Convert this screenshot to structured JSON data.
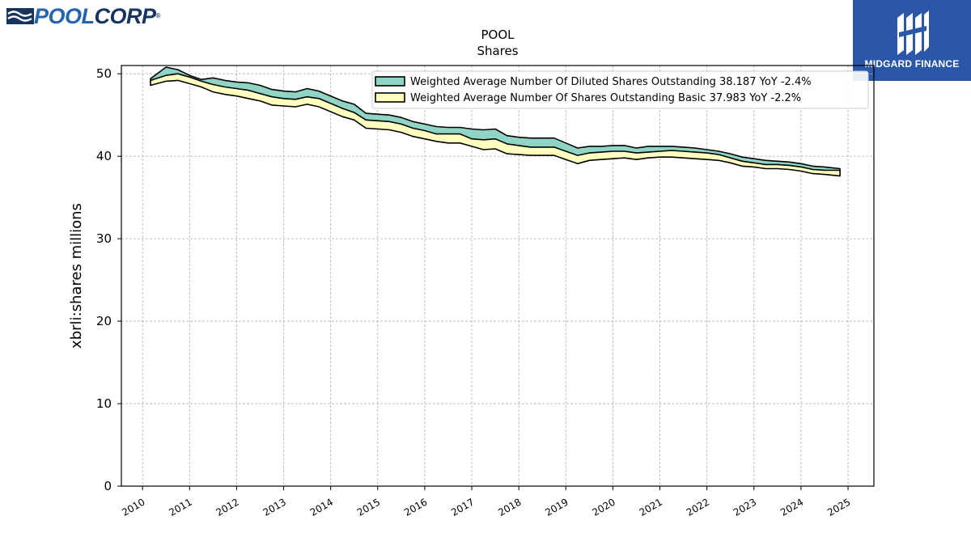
{
  "brand": {
    "logo_text_part1": "POOL",
    "logo_text_part2": "CORP",
    "logo_reg": "®",
    "logo_colors": {
      "pool": "#2565ae",
      "corp": "#17345f"
    },
    "badge_text": "MIDGARD FINANCE",
    "badge_color": "#2a57a8"
  },
  "chart_data": {
    "type": "area",
    "title": "POOL",
    "subtitle": "Shares",
    "xlabel": "",
    "ylabel": "xbrli:shares millions",
    "xlim": [
      2009.55,
      2025.55
    ],
    "ylim": [
      0,
      51
    ],
    "xticks": [
      "2010",
      "2011",
      "2012",
      "2013",
      "2014",
      "2015",
      "2016",
      "2017",
      "2018",
      "2019",
      "2020",
      "2021",
      "2022",
      "2023",
      "2024",
      "2025"
    ],
    "yticks": [
      "0",
      "10",
      "20",
      "30",
      "40",
      "50"
    ],
    "grid": true,
    "legend_position": "top-right",
    "series": [
      {
        "name": "Weighted Average Number Of Diluted Shares Outstanding  38.187 YoY -2.4%",
        "fill": "#8fd4c4",
        "x": [
          2010.17,
          2010.5,
          2010.75,
          2011.0,
          2011.25,
          2011.5,
          2011.75,
          2012.0,
          2012.25,
          2012.5,
          2012.75,
          2013.0,
          2013.25,
          2013.5,
          2013.75,
          2014.0,
          2014.25,
          2014.5,
          2014.75,
          2015.0,
          2015.25,
          2015.5,
          2015.75,
          2016.0,
          2016.25,
          2016.5,
          2016.75,
          2017.0,
          2017.25,
          2017.5,
          2017.75,
          2018.0,
          2018.25,
          2018.5,
          2018.75,
          2019.0,
          2019.25,
          2019.5,
          2019.75,
          2020.0,
          2020.25,
          2020.5,
          2020.75,
          2021.0,
          2021.25,
          2021.5,
          2021.75,
          2022.0,
          2022.25,
          2022.5,
          2022.75,
          2023.0,
          2023.25,
          2023.5,
          2023.75,
          2024.0,
          2024.25,
          2024.5,
          2024.83
        ],
        "upper": [
          49.4,
          50.8,
          50.5,
          49.8,
          49.3,
          49.5,
          49.2,
          49.0,
          48.9,
          48.6,
          48.1,
          47.9,
          47.8,
          48.2,
          47.9,
          47.3,
          46.7,
          46.3,
          45.2,
          45.1,
          45.0,
          44.7,
          44.2,
          43.9,
          43.6,
          43.5,
          43.5,
          43.3,
          43.2,
          43.3,
          42.5,
          42.3,
          42.2,
          42.2,
          42.2,
          41.6,
          41.0,
          41.2,
          41.2,
          41.3,
          41.3,
          41.0,
          41.2,
          41.2,
          41.2,
          41.1,
          41.0,
          40.8,
          40.6,
          40.3,
          39.9,
          39.7,
          39.5,
          39.4,
          39.3,
          39.1,
          38.8,
          38.7,
          38.5
        ],
        "lower": [
          49.1,
          49.7,
          49.9,
          49.5,
          49.0,
          48.6,
          48.3,
          48.1,
          47.9,
          47.5,
          47.1,
          46.9,
          46.8,
          47.1,
          46.9,
          46.3,
          45.7,
          45.2,
          44.3,
          44.2,
          44.1,
          43.8,
          43.3,
          43.0,
          42.6,
          42.6,
          42.6,
          42.0,
          41.9,
          42.0,
          41.4,
          41.2,
          41.0,
          41.0,
          41.0,
          40.5,
          40.0,
          40.3,
          40.4,
          40.5,
          40.5,
          40.3,
          40.4,
          40.5,
          40.6,
          40.5,
          40.4,
          40.3,
          40.1,
          39.7,
          39.3,
          39.1,
          38.9,
          38.9,
          38.8,
          38.6,
          38.3,
          38.2,
          38.187
        ]
      },
      {
        "name": "Weighted Average Number Of Shares Outstanding Basic  37.983 YoY -2.2%",
        "fill": "#ffffc0",
        "x": [
          2010.17,
          2010.5,
          2010.75,
          2011.0,
          2011.25,
          2011.5,
          2011.75,
          2012.0,
          2012.25,
          2012.5,
          2012.75,
          2013.0,
          2013.25,
          2013.5,
          2013.75,
          2014.0,
          2014.25,
          2014.5,
          2014.75,
          2015.0,
          2015.25,
          2015.5,
          2015.75,
          2016.0,
          2016.25,
          2016.5,
          2016.75,
          2017.0,
          2017.25,
          2017.5,
          2017.75,
          2018.0,
          2018.25,
          2018.5,
          2018.75,
          2019.0,
          2019.25,
          2019.5,
          2019.75,
          2020.0,
          2020.25,
          2020.5,
          2020.75,
          2021.0,
          2021.25,
          2021.5,
          2021.75,
          2022.0,
          2022.25,
          2022.5,
          2022.75,
          2023.0,
          2023.25,
          2023.5,
          2023.75,
          2024.0,
          2024.25,
          2024.5,
          2024.83
        ],
        "upper": [
          49.2,
          49.8,
          50.0,
          49.6,
          49.1,
          48.7,
          48.4,
          48.2,
          48.0,
          47.6,
          47.2,
          47.0,
          46.9,
          47.2,
          47.0,
          46.4,
          45.8,
          45.3,
          44.4,
          44.3,
          44.2,
          43.9,
          43.4,
          43.1,
          42.7,
          42.7,
          42.7,
          42.1,
          42.0,
          42.1,
          41.5,
          41.3,
          41.1,
          41.1,
          41.1,
          40.6,
          40.1,
          40.4,
          40.5,
          40.6,
          40.6,
          40.4,
          40.5,
          40.6,
          40.7,
          40.6,
          40.5,
          40.4,
          40.2,
          39.8,
          39.4,
          39.2,
          39.0,
          39.0,
          38.9,
          38.7,
          38.4,
          38.3,
          38.3
        ],
        "lower": [
          48.6,
          49.1,
          49.2,
          48.8,
          48.4,
          47.8,
          47.5,
          47.3,
          47.0,
          46.7,
          46.2,
          46.1,
          46.0,
          46.3,
          46.0,
          45.4,
          44.8,
          44.4,
          43.4,
          43.3,
          43.2,
          42.9,
          42.4,
          42.1,
          41.8,
          41.6,
          41.6,
          41.2,
          40.8,
          40.9,
          40.3,
          40.2,
          40.1,
          40.1,
          40.1,
          39.6,
          39.1,
          39.5,
          39.6,
          39.7,
          39.8,
          39.6,
          39.8,
          39.9,
          39.9,
          39.8,
          39.7,
          39.6,
          39.5,
          39.2,
          38.8,
          38.7,
          38.5,
          38.5,
          38.4,
          38.2,
          37.9,
          37.8,
          37.6
        ]
      }
    ]
  }
}
